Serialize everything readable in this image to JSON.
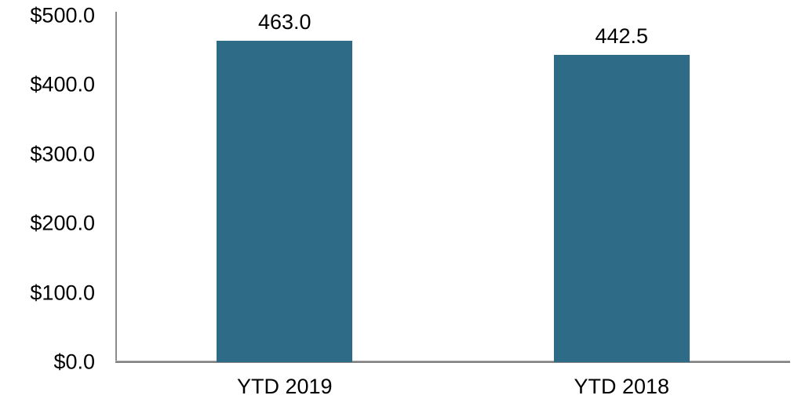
{
  "chart_data": {
    "type": "bar",
    "categories": [
      "YTD 2019",
      "YTD 2018"
    ],
    "values": [
      463.0,
      442.5
    ],
    "data_labels": [
      "463.0",
      "442.5"
    ],
    "title": "",
    "xlabel": "",
    "ylabel": "",
    "ylim": [
      0,
      500
    ],
    "ytick_interval": 100,
    "ytick_labels": [
      "$0.0",
      "$100.0",
      "$200.0",
      "$300.0",
      "$400.0",
      "$500.0"
    ],
    "grid": false,
    "legend": false,
    "bar_color": "#2d6b87",
    "x_axis_color": "#7f7f7f",
    "y_axis_color": "#8c8c8c",
    "text_color": "#000000"
  }
}
